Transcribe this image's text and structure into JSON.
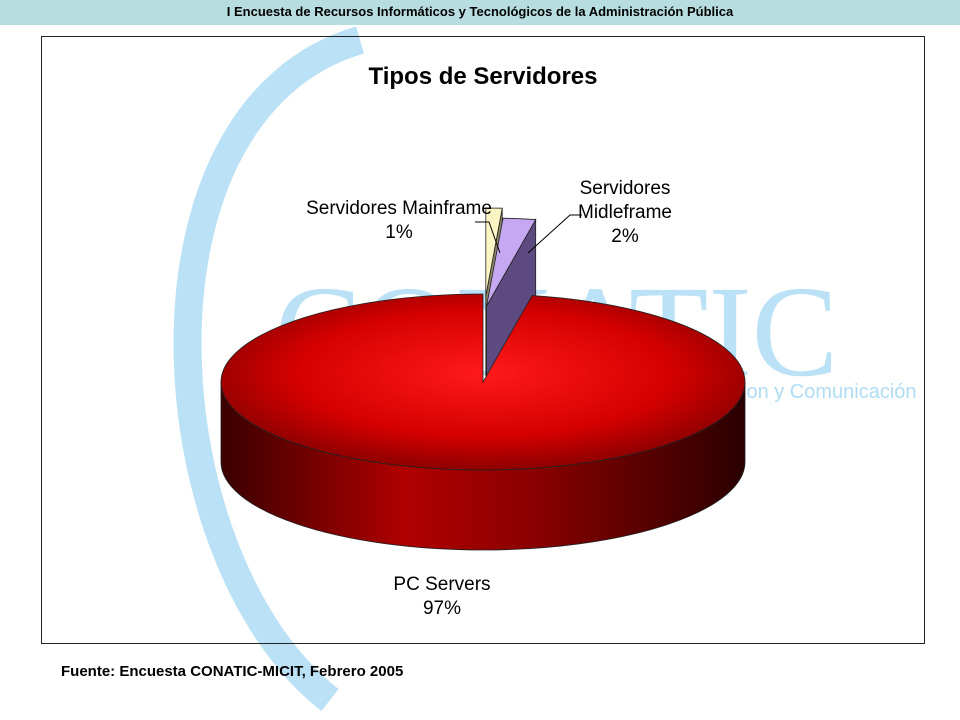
{
  "header": {
    "title": "I Encuesta de Recursos Informáticos y Tecnológicos de la Administración Pública"
  },
  "watermark": {
    "brand": "CONATIC",
    "tagline": "ion y Comunicación",
    "color": "#aedcf5"
  },
  "chart_data": {
    "type": "pie",
    "title": "Tipos de Servidores",
    "legend": "none",
    "slices": [
      {
        "label_lines": [
          "PC Servers",
          "97%"
        ],
        "value": 97,
        "color": "#e00000",
        "side_color": "#6a0000"
      },
      {
        "label_lines": [
          "Servidores Mainframe",
          "1%"
        ],
        "value": 1,
        "color": "#fbf5c4",
        "side_color": "#8c8566"
      },
      {
        "label_lines": [
          "Servidores",
          "Midleframe",
          "2%"
        ],
        "value": 2,
        "color": "#c6a8f2",
        "side_color": "#5c4a80"
      }
    ]
  },
  "footer": {
    "source": "Fuente: Encuesta CONATIC-MICIT, Febrero 2005"
  }
}
